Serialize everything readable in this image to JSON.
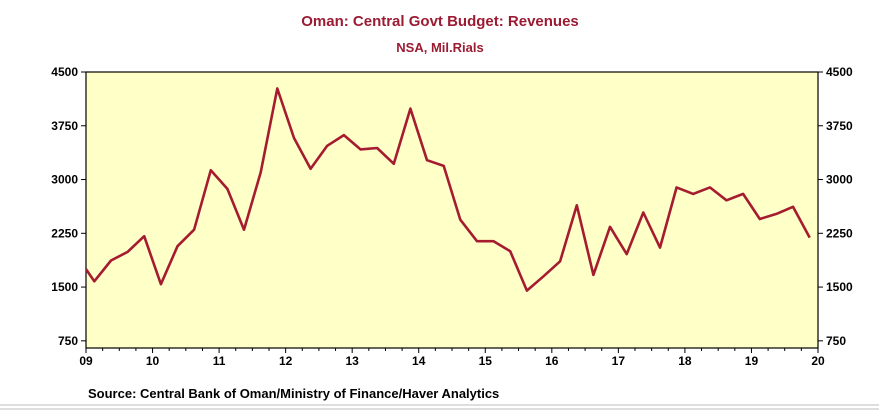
{
  "chart_data": {
    "type": "line",
    "title": "Oman: Central Govt Budget: Revenues",
    "subtitle": "NSA, Mil.Rials",
    "source": "Source:  Central Bank of Oman/Ministry of Finance/Haver Analytics",
    "x_tick_labels": [
      "09",
      "10",
      "11",
      "12",
      "13",
      "14",
      "15",
      "16",
      "17",
      "18",
      "19",
      "20"
    ],
    "x_ticks": [
      2009,
      2010,
      2011,
      2012,
      2013,
      2014,
      2015,
      2016,
      2017,
      2018,
      2019,
      2020
    ],
    "xlim": [
      2009,
      2020
    ],
    "ylim": [
      650,
      4500
    ],
    "y_ticks": [
      750,
      1500,
      2250,
      3000,
      3750,
      4500
    ],
    "y_tick_labels": [
      "750",
      "1500",
      "2250",
      "3000",
      "3750",
      "4500"
    ],
    "grid": false,
    "legend": "none",
    "colors": {
      "line": "#a51c30",
      "plot_bg": "#ffffc8",
      "title": "#9b1b33"
    },
    "series": [
      {
        "x": [
          2009.0,
          2009.125,
          2009.375,
          2009.625,
          2009.875,
          2010.125,
          2010.375,
          2010.625,
          2010.875,
          2011.125,
          2011.375,
          2011.625,
          2011.875,
          2012.125,
          2012.375,
          2012.625,
          2012.875,
          2013.125,
          2013.375,
          2013.625,
          2013.875,
          2014.125,
          2014.375,
          2014.625,
          2014.875,
          2015.125,
          2015.375,
          2015.625,
          2015.875,
          2016.125,
          2016.375,
          2016.625,
          2016.875,
          2017.125,
          2017.375,
          2017.625,
          2017.875,
          2018.125,
          2018.375,
          2018.625,
          2018.875,
          2019.125,
          2019.375,
          2019.625,
          2019.875
        ],
        "values": [
          1750,
          1580,
          1870,
          1990,
          2210,
          1540,
          2070,
          2300,
          3130,
          2870,
          2300,
          3100,
          4270,
          3580,
          3150,
          3470,
          3620,
          3420,
          3440,
          3220,
          3990,
          3270,
          3190,
          2440,
          2140,
          2140,
          2000,
          1450,
          1650,
          1860,
          2640,
          1670,
          2340,
          1960,
          2540,
          2050,
          2890,
          2800,
          2890,
          2710,
          2800,
          2450,
          2520,
          2620,
          2190
        ]
      }
    ]
  }
}
